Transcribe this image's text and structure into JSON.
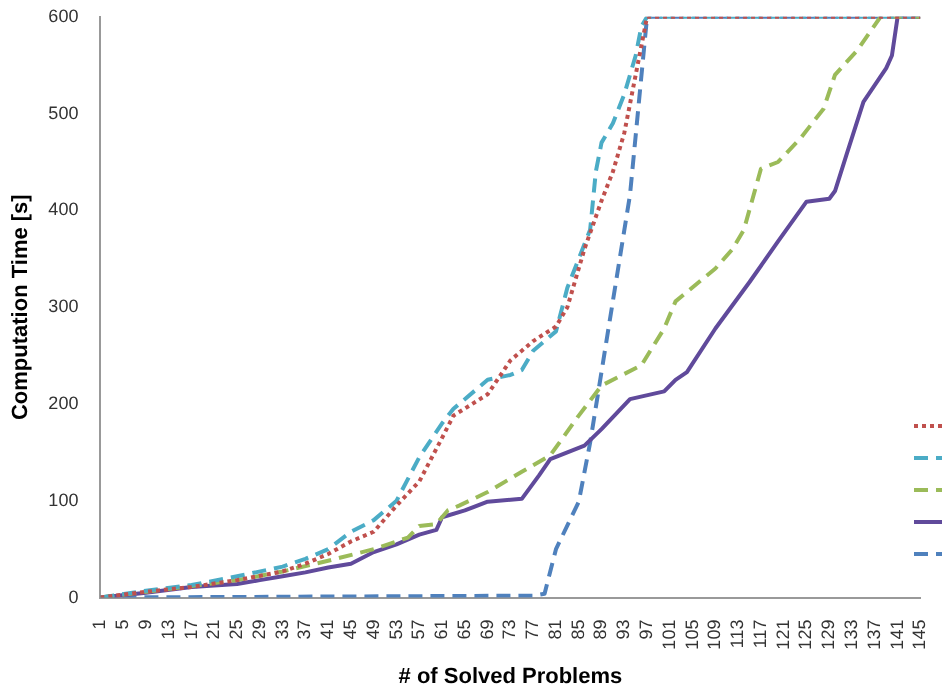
{
  "chart_data": {
    "type": "line",
    "xlabel": "# of Solved Problems",
    "ylabel": "Computation Time [s]",
    "xlim": [
      1,
      145
    ],
    "xticks": [
      1,
      5,
      9,
      13,
      17,
      21,
      25,
      29,
      33,
      37,
      41,
      45,
      49,
      53,
      57,
      61,
      65,
      69,
      73,
      77,
      81,
      85,
      89,
      93,
      97,
      101,
      105,
      109,
      113,
      117,
      121,
      125,
      129,
      133,
      137,
      141,
      145
    ],
    "ylim": [
      0,
      600
    ],
    "yticks": [
      0,
      100,
      200,
      300,
      400,
      500,
      600
    ],
    "grid": false,
    "marker": "none",
    "series": [
      {
        "color": "#c0504d",
        "line_style": "dotted",
        "x": [
          1,
          9,
          17,
          25,
          33,
          37,
          41,
          45,
          49,
          53,
          57,
          61,
          63,
          69,
          73,
          77,
          81,
          83,
          86,
          89,
          91,
          93,
          95,
          96,
          97,
          145
        ],
        "values": [
          0,
          6,
          11,
          18,
          27,
          35,
          45,
          58,
          68,
          95,
          120,
          165,
          188,
          210,
          245,
          265,
          280,
          300,
          360,
          410,
          440,
          480,
          540,
          570,
          600,
          600
        ]
      },
      {
        "color": "#4bacc6",
        "line_style": "dashed",
        "x": [
          1,
          9,
          17,
          25,
          33,
          37,
          41,
          45,
          49,
          53,
          57,
          61,
          63,
          69,
          73,
          75,
          77,
          81,
          83,
          85,
          87,
          88,
          89,
          91,
          93,
          95,
          96,
          97,
          145
        ],
        "values": [
          0,
          7,
          13,
          22,
          32,
          40,
          50,
          68,
          80,
          100,
          145,
          180,
          195,
          225,
          230,
          235,
          255,
          275,
          320,
          350,
          380,
          440,
          470,
          490,
          520,
          560,
          590,
          600,
          600
        ]
      },
      {
        "color": "#9bbb59",
        "line_style": "dashed",
        "x": [
          1,
          9,
          17,
          25,
          33,
          41,
          49,
          55,
          57,
          60,
          62,
          64,
          69,
          75,
          80,
          85,
          89,
          96,
          100,
          102,
          109,
          112,
          114,
          117,
          120,
          124,
          128,
          130,
          134,
          138,
          145
        ],
        "values": [
          0,
          6,
          12,
          18,
          27,
          38,
          50,
          62,
          74,
          76,
          90,
          95,
          109,
          130,
          147,
          188,
          219,
          240,
          278,
          306,
          340,
          360,
          380,
          443,
          450,
          475,
          505,
          540,
          566,
          600,
          600
        ]
      },
      {
        "color": "#604a9b",
        "line_style": "solid",
        "x": [
          1,
          9,
          17,
          25,
          29,
          33,
          37,
          41,
          45,
          49,
          53,
          57,
          60,
          61,
          65,
          69,
          75,
          78,
          80,
          86,
          89,
          94,
          100,
          102,
          104,
          109,
          115,
          120,
          125,
          129,
          130,
          132,
          135,
          139,
          140,
          141,
          145
        ],
        "values": [
          0,
          5,
          11,
          14,
          18,
          22,
          26,
          31,
          35,
          47,
          55,
          65,
          70,
          83,
          90,
          99,
          102,
          126,
          143,
          157,
          174,
          205,
          213,
          225,
          233,
          278,
          326,
          368,
          409,
          412,
          420,
          457,
          512,
          547,
          560,
          600,
          600
        ]
      },
      {
        "color": "#4f81bd",
        "line_style": "dashed",
        "x": [
          1,
          77,
          79,
          81,
          85,
          87,
          90,
          94,
          97,
          145
        ],
        "values": [
          0,
          2,
          4,
          50,
          99,
          160,
          270,
          416,
          600,
          600
        ]
      }
    ]
  }
}
